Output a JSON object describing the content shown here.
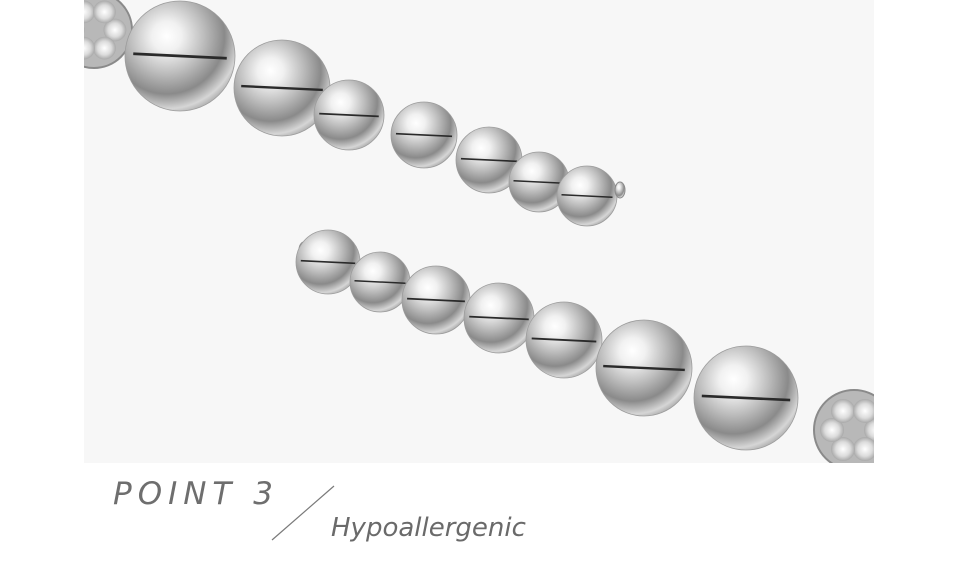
{
  "section": {
    "point_label": "POINT 3",
    "feature_label": "Hypoallergenic"
  },
  "photo": {
    "subject": "bracelet-bead-ends-image",
    "background_color": "#f7f7f7",
    "metal_color": "#c9c9c9"
  }
}
